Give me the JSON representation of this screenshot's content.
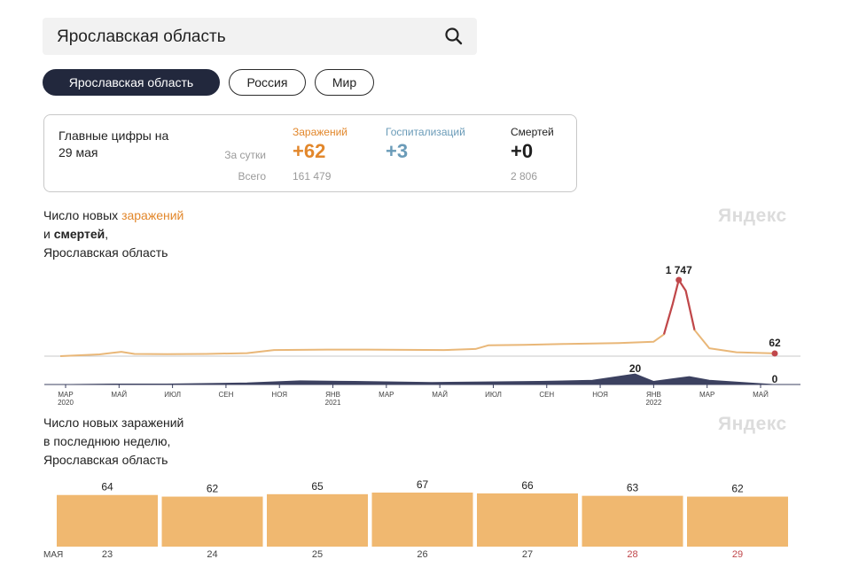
{
  "search": {
    "value": "Ярославская область"
  },
  "tabs": [
    {
      "label": "Ярославская область",
      "active": true
    },
    {
      "label": "Россия",
      "active": false
    },
    {
      "label": "Мир",
      "active": false
    }
  ],
  "summary": {
    "title_line1": "Главные цифры на",
    "title_line2": "29 мая",
    "row_day": "За сутки",
    "row_total": "Всего",
    "infections": {
      "label": "Заражений",
      "day": "+62",
      "total": "161 479",
      "color": "#e2872b"
    },
    "hospitalizations": {
      "label": "Госпитализаций",
      "day": "+3",
      "total": "",
      "color": "#6a9bb8"
    },
    "deaths": {
      "label": "Смертей",
      "day": "+0",
      "total": "2 806",
      "color": "#1e1e1e"
    }
  },
  "chart1": {
    "title_part1": "Число новых ",
    "title_highlight": "заражений",
    "title_line2_prefix": "и ",
    "title_bold": "смертей",
    "title_line2_suffix": ",",
    "title_line3": "Ярославская область",
    "watermark": "Яндекс"
  },
  "chart2": {
    "title_line1": "Число новых заражений",
    "title_line2": "в последнюю неделю,",
    "title_line3": "Ярославская область",
    "watermark": "Яндекс"
  },
  "chart_data": [
    {
      "type": "line",
      "title": "Число новых заражений и смертей, Ярославская область",
      "x_ticks": [
        {
          "label": "МАР",
          "year": "2020"
        },
        {
          "label": "МАЙ"
        },
        {
          "label": "ИЮЛ"
        },
        {
          "label": "СЕН"
        },
        {
          "label": "НОЯ"
        },
        {
          "label": "ЯНВ",
          "year": "2021"
        },
        {
          "label": "МАР"
        },
        {
          "label": "МАЙ"
        },
        {
          "label": "ИЮЛ"
        },
        {
          "label": "СЕН"
        },
        {
          "label": "НОЯ"
        },
        {
          "label": "ЯНВ",
          "year": "2022"
        },
        {
          "label": "МАР"
        },
        {
          "label": "МАЙ"
        }
      ],
      "x_range": [
        "2020-03-01",
        "2022-05-29"
      ],
      "series": [
        {
          "name": "заражений",
          "color": "#e9b778",
          "peak_color": "#c0474b",
          "points": [
            [
              "2020-03-01",
              0
            ],
            [
              "2020-04-15",
              40
            ],
            [
              "2020-05-10",
              100
            ],
            [
              "2020-05-25",
              50
            ],
            [
              "2020-07-01",
              45
            ],
            [
              "2020-08-15",
              50
            ],
            [
              "2020-10-01",
              70
            ],
            [
              "2020-11-01",
              140
            ],
            [
              "2021-01-01",
              150
            ],
            [
              "2021-02-15",
              150
            ],
            [
              "2021-04-01",
              145
            ],
            [
              "2021-05-15",
              140
            ],
            [
              "2021-06-20",
              165
            ],
            [
              "2021-07-05",
              250
            ],
            [
              "2021-08-15",
              260
            ],
            [
              "2021-10-01",
              280
            ],
            [
              "2021-12-01",
              300
            ],
            [
              "2022-01-10",
              330
            ],
            [
              "2022-01-22",
              500
            ],
            [
              "2022-02-01",
              1200
            ],
            [
              "2022-02-08",
              1747
            ],
            [
              "2022-02-16",
              1500
            ],
            [
              "2022-02-26",
              600
            ],
            [
              "2022-03-15",
              180
            ],
            [
              "2022-04-15",
              90
            ],
            [
              "2022-05-29",
              62
            ]
          ],
          "peak": {
            "date": "2022-02-08",
            "value": 1747,
            "label": "1 747"
          },
          "last": {
            "date": "2022-05-29",
            "value": 62,
            "label": "62"
          }
        },
        {
          "name": "смертей",
          "color": "#3c4160",
          "points": [
            [
              "2020-03-01",
              0
            ],
            [
              "2020-05-01",
              1
            ],
            [
              "2020-07-01",
              1
            ],
            [
              "2020-10-01",
              3
            ],
            [
              "2020-12-01",
              7
            ],
            [
              "2021-02-01",
              6
            ],
            [
              "2021-05-01",
              4
            ],
            [
              "2021-07-01",
              5
            ],
            [
              "2021-09-01",
              6
            ],
            [
              "2021-11-01",
              8
            ],
            [
              "2021-12-20",
              20
            ],
            [
              "2022-01-10",
              6
            ],
            [
              "2022-02-20",
              15
            ],
            [
              "2022-03-15",
              8
            ],
            [
              "2022-05-29",
              0
            ]
          ],
          "peak": {
            "date": "2021-12-20",
            "value": 20,
            "label": "20"
          },
          "last": {
            "date": "2022-05-29",
            "value": 0,
            "label": "0"
          }
        }
      ]
    },
    {
      "type": "bar",
      "title": "Число новых заражений в последнюю неделю, Ярославская область",
      "month_label": "МАЯ",
      "categories": [
        "23",
        "24",
        "25",
        "26",
        "27",
        "28",
        "29"
      ],
      "category_colors": [
        "#444444",
        "#444444",
        "#444444",
        "#444444",
        "#444444",
        "#c0474b",
        "#c0474b"
      ],
      "values": [
        64,
        62,
        65,
        67,
        66,
        63,
        62
      ],
      "bar_color": "#f0b870",
      "ylim": [
        0,
        67
      ]
    }
  ]
}
